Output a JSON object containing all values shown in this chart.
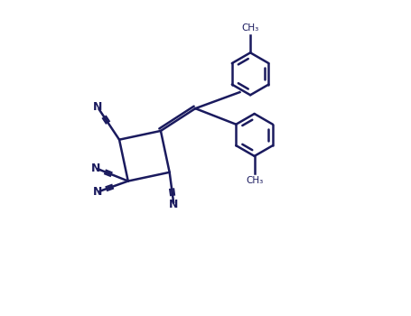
{
  "background_color": "#ffffff",
  "line_color": "#1a1a5e",
  "cn_color": "#1a1a5e",
  "figure_width": 4.55,
  "figure_height": 3.5,
  "dpi": 100,
  "xlim": [
    0,
    10
  ],
  "ylim": [
    0,
    7.7
  ]
}
